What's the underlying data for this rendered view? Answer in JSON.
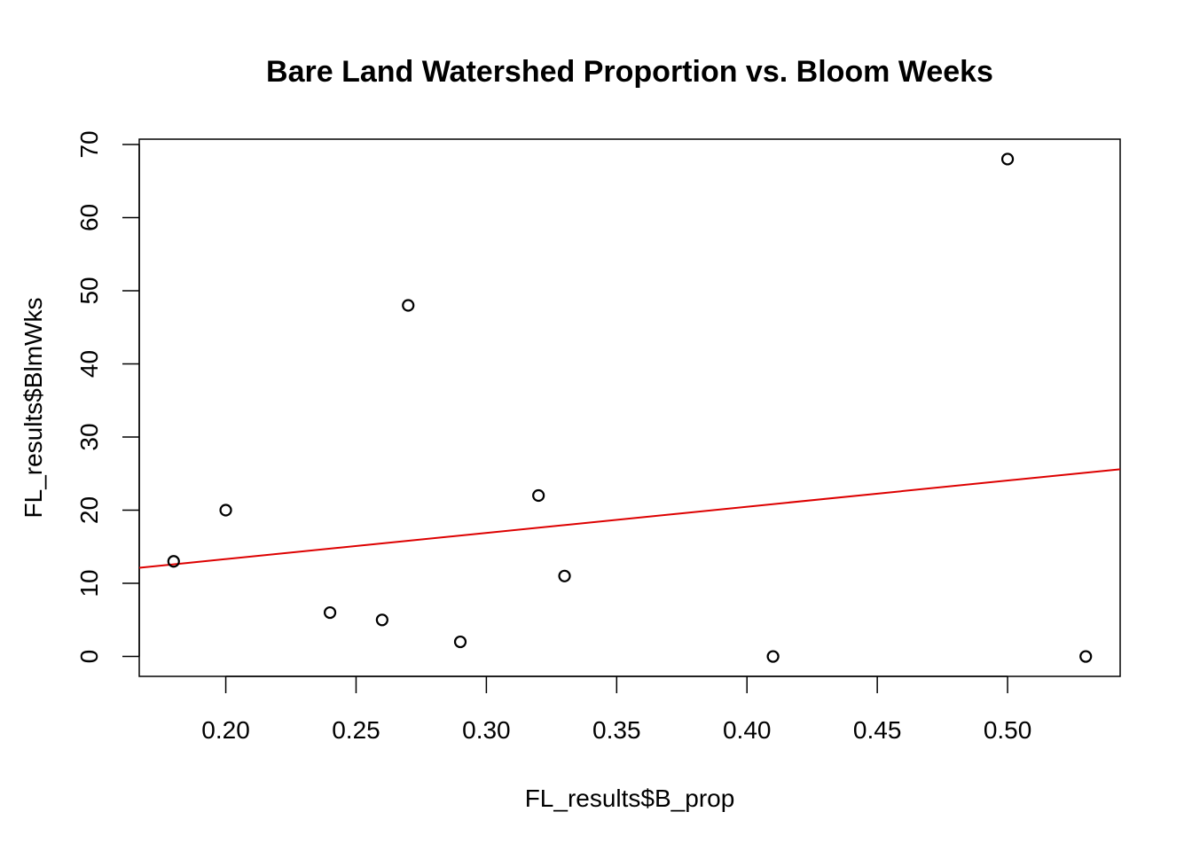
{
  "chart_data": {
    "type": "scatter",
    "title": "Bare Land Watershed Proportion vs. Bloom Weeks",
    "xlabel": "FL_results$B_prop",
    "ylabel": "FL_results$BlmWks",
    "xlim": [
      0.1668,
      0.5432
    ],
    "ylim": [
      -2.72,
      70.72
    ],
    "x_ticks": [
      "0.20",
      "0.25",
      "0.30",
      "0.35",
      "0.40",
      "0.45",
      "0.50"
    ],
    "y_ticks": [
      "0",
      "10",
      "20",
      "30",
      "40",
      "50",
      "60",
      "70"
    ],
    "grid": false,
    "points": [
      {
        "x": 0.18,
        "y": 13
      },
      {
        "x": 0.2,
        "y": 20
      },
      {
        "x": 0.24,
        "y": 6
      },
      {
        "x": 0.26,
        "y": 5
      },
      {
        "x": 0.27,
        "y": 48
      },
      {
        "x": 0.29,
        "y": 2
      },
      {
        "x": 0.32,
        "y": 22
      },
      {
        "x": 0.33,
        "y": 11
      },
      {
        "x": 0.41,
        "y": 0
      },
      {
        "x": 0.5,
        "y": 68
      },
      {
        "x": 0.53,
        "y": 0
      }
    ],
    "regression_line": {
      "intercept": 6.15,
      "slope": 35.8,
      "color": "#dd0000"
    },
    "point_color": "#000000"
  }
}
